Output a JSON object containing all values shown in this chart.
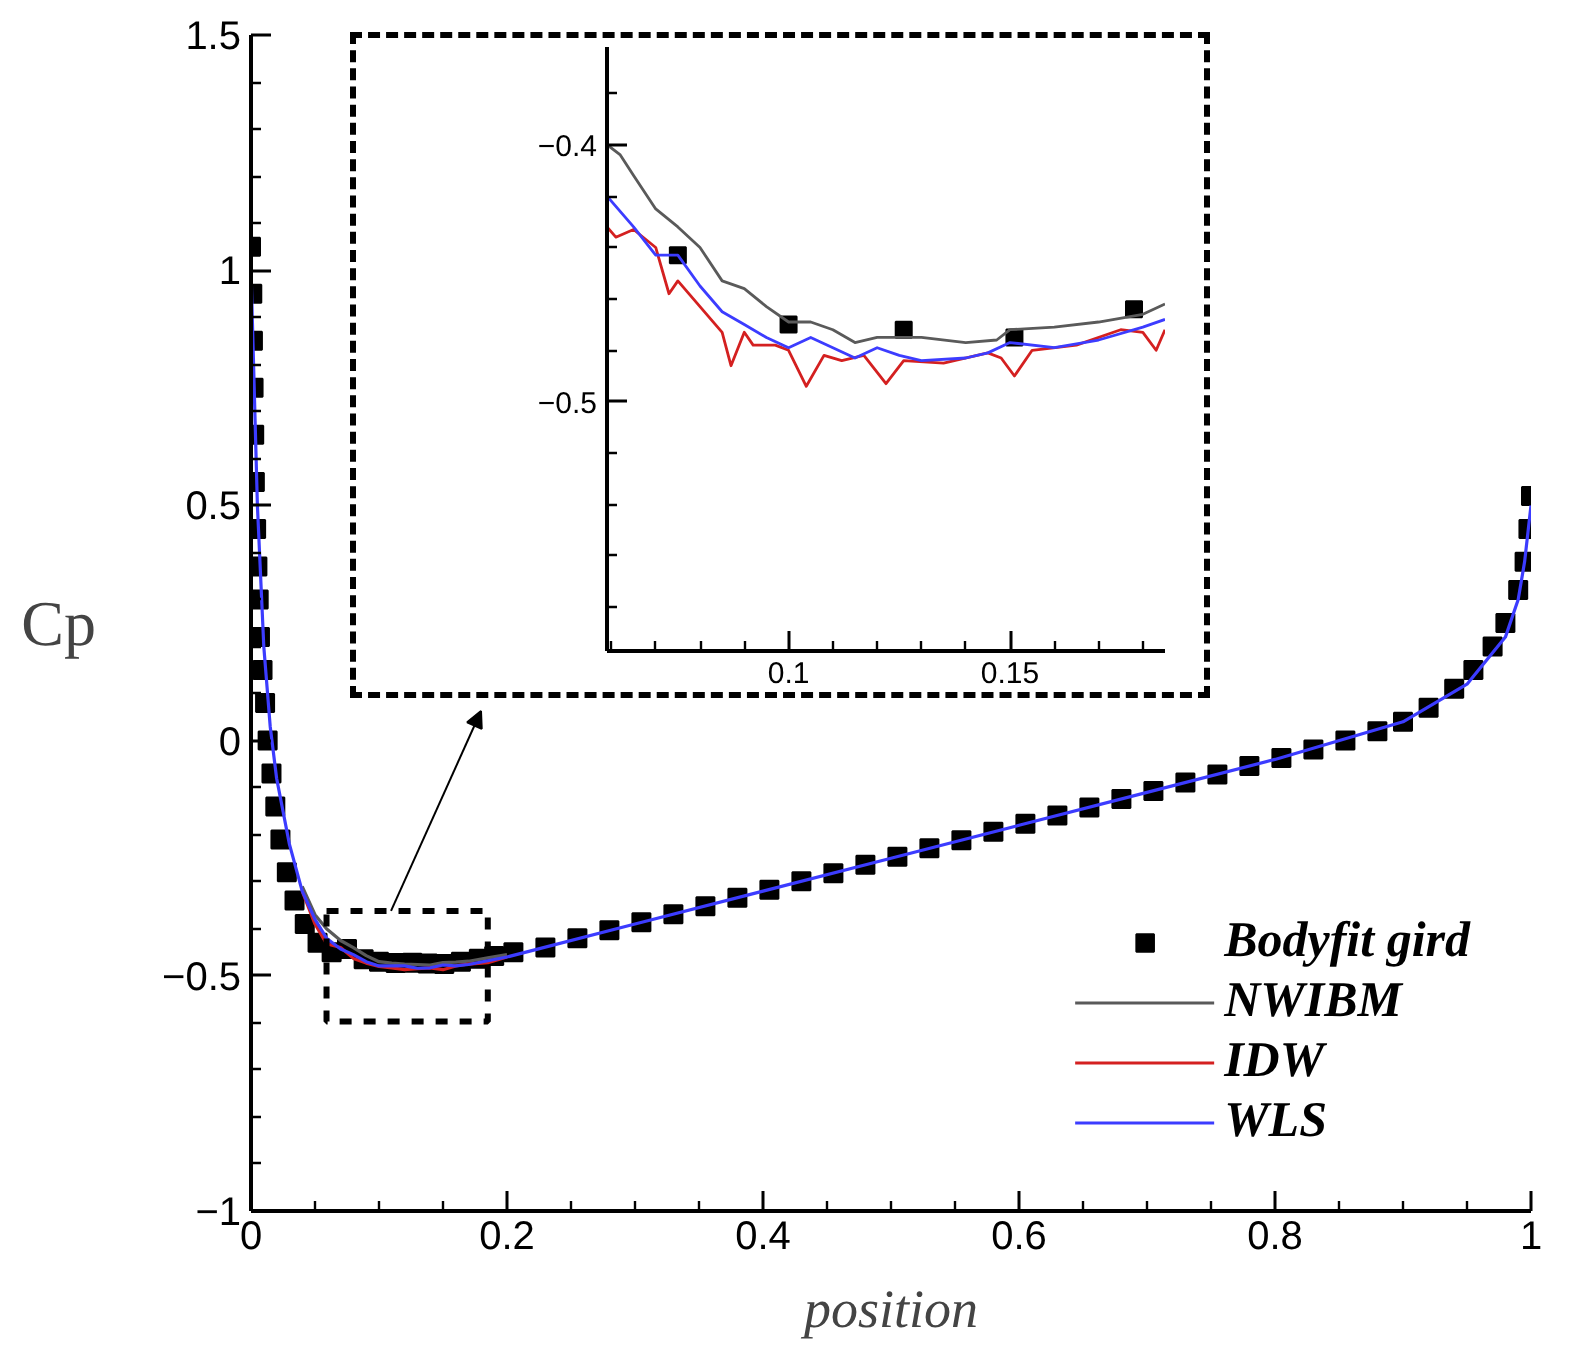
{
  "chart_data": [
    {
      "type": "line",
      "xlabel": "position",
      "ylabel": "Cp",
      "xlim": [
        0,
        1
      ],
      "ylim": [
        -1,
        1.5
      ],
      "xticks": [
        0,
        0.2,
        0.4,
        0.6,
        0.8,
        1,
        {
          "value": 0.05,
          "label": null
        },
        {
          "value": 0.1,
          "label": null
        },
        {
          "value": 0.15,
          "label": null
        },
        {
          "value": 0.25,
          "label": null
        },
        {
          "value": 0.3,
          "label": null
        },
        {
          "value": 0.35,
          "label": null
        },
        {
          "value": 0.45,
          "label": null
        },
        {
          "value": 0.5,
          "label": null
        },
        {
          "value": 0.55,
          "label": null
        },
        {
          "value": 0.65,
          "label": null
        },
        {
          "value": 0.7,
          "label": null
        },
        {
          "value": 0.75,
          "label": null
        },
        {
          "value": 0.85,
          "label": null
        },
        {
          "value": 0.9,
          "label": null
        },
        {
          "value": 0.95,
          "label": null
        }
      ],
      "yticks": [
        -1,
        -0.5,
        0,
        0.5,
        1,
        1.5,
        {
          "value": -0.9,
          "label": null
        },
        {
          "value": -0.8,
          "label": null
        },
        {
          "value": -0.7,
          "label": null
        },
        {
          "value": -0.6,
          "label": null
        },
        {
          "value": -0.4,
          "label": null
        },
        {
          "value": -0.3,
          "label": null
        },
        {
          "value": -0.2,
          "label": null
        },
        {
          "value": -0.1,
          "label": null
        },
        {
          "value": 0.1,
          "label": null
        },
        {
          "value": 0.2,
          "label": null
        },
        {
          "value": 0.3,
          "label": null
        },
        {
          "value": 0.4,
          "label": null
        },
        {
          "value": 0.6,
          "label": null
        },
        {
          "value": 0.7,
          "label": null
        },
        {
          "value": 0.8,
          "label": null
        },
        {
          "value": 0.9,
          "label": null
        },
        {
          "value": 1.1,
          "label": null
        },
        {
          "value": 1.2,
          "label": null
        },
        {
          "value": 1.3,
          "label": null
        },
        {
          "value": 1.4,
          "label": null
        }
      ],
      "grid": false,
      "legend": "bottom right",
      "line_style": "solid",
      "series": [
        {
          "name": "Bodyfit gird",
          "type": "scatter",
          "marker": "square",
          "color": "#000000",
          "x": [
            0.0,
            0.001,
            0.0015,
            0.002,
            0.0025,
            0.003,
            0.004,
            0.005,
            0.006,
            0.007,
            0.009,
            0.011,
            0.013,
            0.016,
            0.019,
            0.023,
            0.028,
            0.034,
            0.042,
            0.052,
            0.063,
            0.075,
            0.088,
            0.1,
            0.113,
            0.126,
            0.138,
            0.151,
            0.164,
            0.178,
            0.19,
            0.205,
            0.23,
            0.255,
            0.28,
            0.305,
            0.33,
            0.355,
            0.38,
            0.405,
            0.43,
            0.455,
            0.48,
            0.505,
            0.53,
            0.555,
            0.58,
            0.605,
            0.63,
            0.655,
            0.68,
            0.705,
            0.73,
            0.755,
            0.78,
            0.805,
            0.83,
            0.855,
            0.88,
            0.9,
            0.92,
            0.94,
            0.955,
            0.97,
            0.98,
            0.99,
            0.995,
            0.998,
            1.0
          ],
          "values": [
            1.05,
            0.95,
            0.85,
            0.75,
            0.65,
            0.55,
            0.45,
            0.37,
            0.3,
            0.22,
            0.15,
            0.08,
            0.0,
            -0.07,
            -0.14,
            -0.21,
            -0.28,
            -0.34,
            -0.39,
            -0.43,
            -0.45,
            -0.443,
            -0.465,
            -0.47,
            -0.473,
            -0.472,
            -0.474,
            -0.475,
            -0.47,
            -0.464,
            -0.458,
            -0.45,
            -0.44,
            -0.42,
            -0.403,
            -0.386,
            -0.369,
            -0.352,
            -0.334,
            -0.317,
            -0.299,
            -0.282,
            -0.264,
            -0.247,
            -0.229,
            -0.212,
            -0.194,
            -0.177,
            -0.159,
            -0.142,
            -0.124,
            -0.107,
            -0.089,
            -0.072,
            -0.054,
            -0.037,
            -0.019,
            0.0,
            0.02,
            0.04,
            0.07,
            0.11,
            0.15,
            0.2,
            0.25,
            0.32,
            0.38,
            0.45,
            0.52
          ]
        },
        {
          "name": "NWIBM",
          "color": "#5a5a5a",
          "x": [
            0.04,
            0.05,
            0.059,
            0.07,
            0.08,
            0.09,
            0.1,
            0.11,
            0.12,
            0.13,
            0.14,
            0.15,
            0.16,
            0.17,
            0.185,
            0.2
          ],
          "values": [
            -0.31,
            -0.37,
            -0.4,
            -0.425,
            -0.44,
            -0.457,
            -0.47,
            -0.473,
            -0.475,
            -0.476,
            -0.477,
            -0.472,
            -0.471,
            -0.469,
            -0.462,
            -0.455
          ]
        },
        {
          "name": "IDW",
          "color": "#d42020",
          "x": [
            0.04,
            0.05,
            0.059,
            0.07,
            0.08,
            0.09,
            0.1,
            0.11,
            0.12,
            0.13,
            0.14,
            0.15,
            0.16,
            0.17,
            0.185,
            0.2
          ],
          "values": [
            -0.32,
            -0.39,
            -0.432,
            -0.44,
            -0.463,
            -0.473,
            -0.48,
            -0.483,
            -0.487,
            -0.485,
            -0.483,
            -0.487,
            -0.479,
            -0.475,
            -0.472,
            -0.46
          ]
        },
        {
          "name": "WLS",
          "color": "#3c3cff",
          "x": [
            0,
            0.002,
            0.005,
            0.01,
            0.015,
            0.02,
            0.03,
            0.04,
            0.05,
            0.059,
            0.07,
            0.08,
            0.09,
            0.1,
            0.11,
            0.12,
            0.13,
            0.14,
            0.15,
            0.16,
            0.17,
            0.185,
            0.2,
            0.3,
            0.4,
            0.5,
            0.6,
            0.7,
            0.8,
            0.9,
            0.95,
            0.98,
            0.99,
            0.995,
            1.0
          ],
          "values": [
            1.0,
            0.8,
            0.5,
            0.2,
            0.03,
            -0.08,
            -0.22,
            -0.32,
            -0.38,
            -0.42,
            -0.443,
            -0.455,
            -0.47,
            -0.479,
            -0.479,
            -0.479,
            -0.484,
            -0.483,
            -0.477,
            -0.479,
            -0.476,
            -0.468,
            -0.46,
            -0.39,
            -0.32,
            -0.25,
            -0.18,
            -0.11,
            -0.04,
            0.04,
            0.12,
            0.22,
            0.3,
            0.38,
            0.5
          ]
        }
      ]
    },
    {
      "type": "line",
      "xlim": [
        0.059,
        0.185
      ],
      "ylim": [
        -0.597,
        -0.362
      ],
      "xticks": [
        0.1,
        0.15,
        {
          "value": 0.06,
          "label": null
        },
        {
          "value": 0.07,
          "label": null
        },
        {
          "value": 0.08,
          "label": null
        },
        {
          "value": 0.09,
          "label": null
        },
        {
          "value": 0.11,
          "label": null
        },
        {
          "value": 0.12,
          "label": null
        },
        {
          "value": 0.13,
          "label": null
        },
        {
          "value": 0.14,
          "label": null
        },
        {
          "value": 0.16,
          "label": null
        },
        {
          "value": 0.17,
          "label": null
        },
        {
          "value": 0.18,
          "label": null
        }
      ],
      "yticks": [
        -0.4,
        -0.5,
        {
          "value": -0.38,
          "label": null
        },
        {
          "value": -0.42,
          "label": null
        },
        {
          "value": -0.44,
          "label": null
        },
        {
          "value": -0.46,
          "label": null
        },
        {
          "value": -0.48,
          "label": null
        },
        {
          "value": -0.52,
          "label": null
        },
        {
          "value": -0.54,
          "label": null
        },
        {
          "value": -0.56,
          "label": null
        },
        {
          "value": -0.58,
          "label": null
        }
      ],
      "grid": false,
      "legend": false,
      "line_style": "solid",
      "series": [
        {
          "type": "scatter",
          "marker": "square",
          "color": "#000000",
          "x": [
            0.075,
            0.1,
            0.126,
            0.151,
            0.178
          ],
          "values": [
            -0.443,
            -0.47,
            -0.472,
            -0.475,
            -0.464
          ]
        },
        {
          "color": "#5a5a5a",
          "x": [
            0.059,
            0.062,
            0.065,
            0.07,
            0.075,
            0.08,
            0.085,
            0.09,
            0.095,
            0.1,
            0.105,
            0.11,
            0.115,
            0.12,
            0.13,
            0.14,
            0.147,
            0.15,
            0.16,
            0.17,
            0.18,
            0.185
          ],
          "values": [
            -0.4,
            -0.404,
            -0.412,
            -0.425,
            -0.432,
            -0.44,
            -0.453,
            -0.456,
            -0.463,
            -0.469,
            -0.469,
            -0.472,
            -0.477,
            -0.475,
            -0.475,
            -0.477,
            -0.476,
            -0.472,
            -0.471,
            -0.469,
            -0.466,
            -0.462
          ]
        },
        {
          "color": "#d42020",
          "x": [
            0.059,
            0.061,
            0.065,
            0.07,
            0.073,
            0.075,
            0.08,
            0.085,
            0.087,
            0.09,
            0.092,
            0.097,
            0.1,
            0.104,
            0.108,
            0.112,
            0.117,
            0.122,
            0.126,
            0.135,
            0.145,
            0.148,
            0.151,
            0.155,
            0.165,
            0.175,
            0.18,
            0.183,
            0.185
          ],
          "values": [
            -0.432,
            -0.436,
            -0.433,
            -0.44,
            -0.458,
            -0.453,
            -0.463,
            -0.473,
            -0.486,
            -0.473,
            -0.478,
            -0.478,
            -0.48,
            -0.494,
            -0.482,
            -0.484,
            -0.482,
            -0.493,
            -0.484,
            -0.485,
            -0.481,
            -0.483,
            -0.49,
            -0.48,
            -0.478,
            -0.472,
            -0.473,
            -0.48,
            -0.472
          ]
        },
        {
          "color": "#3c3cff",
          "x": [
            0.059,
            0.065,
            0.07,
            0.075,
            0.08,
            0.085,
            0.09,
            0.095,
            0.1,
            0.105,
            0.11,
            0.115,
            0.12,
            0.125,
            0.13,
            0.14,
            0.145,
            0.15,
            0.16,
            0.17,
            0.18,
            0.185
          ],
          "values": [
            -0.42,
            -0.432,
            -0.443,
            -0.443,
            -0.455,
            -0.465,
            -0.47,
            -0.475,
            -0.479,
            -0.475,
            -0.479,
            -0.483,
            -0.479,
            -0.482,
            -0.484,
            -0.483,
            -0.481,
            -0.477,
            -0.479,
            -0.476,
            -0.471,
            -0.468
          ]
        }
      ]
    }
  ]
}
